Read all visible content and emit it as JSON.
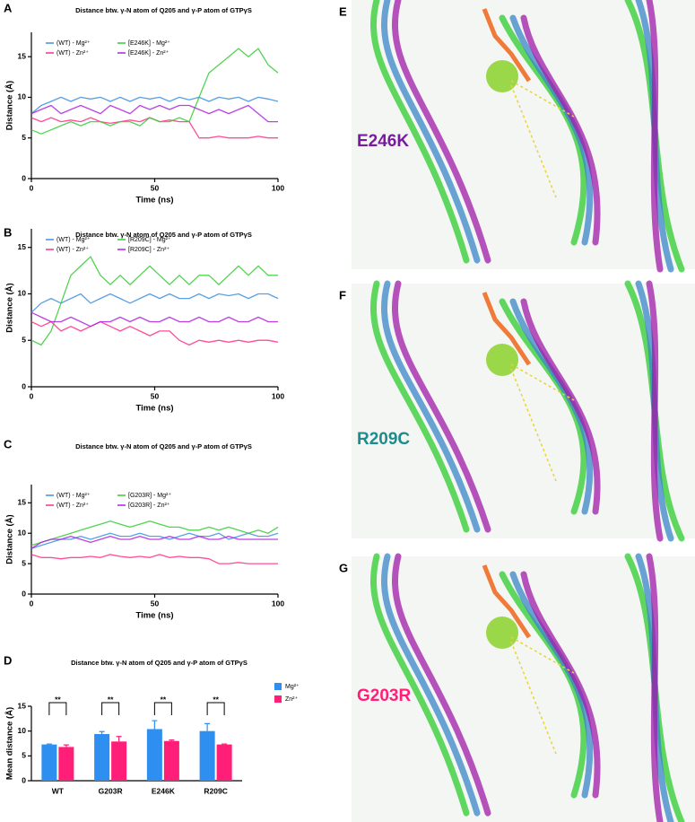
{
  "chart_data": [
    {
      "type": "line",
      "panel": "A",
      "title": "Distance btw. γ-N atom of Q205 and γ-P atom of GTPγS",
      "x_label": "Time (ns)",
      "y_label": "Distance (Å)",
      "xlim": [
        0,
        100
      ],
      "xticks": [
        0,
        50,
        100
      ],
      "ylim": [
        0,
        18
      ],
      "yticks": [
        0,
        5,
        10,
        15
      ],
      "x": [
        0,
        4,
        8,
        12,
        16,
        20,
        24,
        28,
        32,
        36,
        40,
        44,
        48,
        52,
        56,
        60,
        64,
        68,
        72,
        76,
        80,
        84,
        88,
        92,
        96,
        100
      ],
      "series": [
        {
          "name": "(WT) - Mg²⁺",
          "color": "#3d8fe0",
          "values": [
            8,
            9,
            9.5,
            10,
            9.5,
            10,
            9.8,
            10,
            9.5,
            10,
            9.5,
            10,
            9.8,
            10,
            9.5,
            10,
            9.7,
            10,
            9.5,
            10,
            9.8,
            10,
            9.5,
            10,
            9.8,
            9.5
          ]
        },
        {
          "name": "(WT) - Zn²⁺",
          "color": "#ff2d8a",
          "values": [
            7.5,
            7,
            7.5,
            7,
            7.2,
            7,
            7.5,
            7,
            6.8,
            7,
            7.2,
            7,
            7.5,
            7,
            7.2,
            7,
            7,
            5,
            5,
            5.2,
            5,
            5,
            5,
            5.2,
            5,
            5
          ]
        },
        {
          "name": "[E246K] - Mg²⁺",
          "color": "#33cc33",
          "values": [
            6,
            5.5,
            6,
            6.5,
            7,
            6.5,
            7,
            7,
            6.5,
            7,
            7,
            6.5,
            7.5,
            7,
            7,
            7.5,
            7,
            10,
            13,
            14,
            15,
            16,
            15,
            16,
            14,
            13
          ]
        },
        {
          "name": "[E246K] - Zn²⁺",
          "color": "#b020e0",
          "values": [
            8,
            8.5,
            9,
            8,
            8.5,
            9,
            8.5,
            8,
            9,
            8.5,
            8,
            9,
            8.5,
            9,
            8.5,
            9,
            9,
            8.5,
            8,
            8.5,
            8,
            8.5,
            9,
            8,
            7,
            7
          ]
        }
      ]
    },
    {
      "type": "line",
      "panel": "B",
      "title": "Distance btw. γ-N atom of Q205 and γ-P atom of GTPγS",
      "x_label": "Time (ns)",
      "y_label": "Distance (Å)",
      "xlim": [
        0,
        100
      ],
      "xticks": [
        0,
        50,
        100
      ],
      "ylim": [
        0,
        17
      ],
      "yticks": [
        0,
        5,
        10,
        15
      ],
      "x": [
        0,
        4,
        8,
        12,
        16,
        20,
        24,
        28,
        32,
        36,
        40,
        44,
        48,
        52,
        56,
        60,
        64,
        68,
        72,
        76,
        80,
        84,
        88,
        92,
        96,
        100
      ],
      "series": [
        {
          "name": "(WT) - Mg²⁺",
          "color": "#3d8fe0",
          "values": [
            8,
            9,
            9.5,
            9,
            9.5,
            10,
            9,
            9.5,
            10,
            9.5,
            9,
            9.5,
            10,
            9.5,
            10,
            9.5,
            9.5,
            10,
            9.5,
            10,
            9.8,
            10,
            9.5,
            10,
            10,
            9.5
          ]
        },
        {
          "name": "(WT) - Zn²⁺",
          "color": "#ff2d8a",
          "values": [
            7,
            6.5,
            7,
            6,
            6.5,
            6,
            6.5,
            7,
            6.5,
            6,
            6.5,
            6,
            5.5,
            6,
            6,
            5,
            4.5,
            5,
            4.8,
            5,
            4.8,
            5,
            4.8,
            5,
            5,
            4.8
          ]
        },
        {
          "name": "[R209C] - Mg²⁺",
          "color": "#33cc33",
          "values": [
            5,
            4.5,
            6,
            9,
            12,
            13,
            14,
            12,
            11,
            12,
            11,
            12,
            13,
            12,
            11,
            12,
            11,
            12,
            12,
            11,
            12,
            13,
            12,
            13,
            12,
            12
          ]
        },
        {
          "name": "[R209C] - Zn²⁺",
          "color": "#b020e0",
          "values": [
            8,
            7.5,
            7,
            7,
            7.5,
            7,
            6.5,
            7,
            7,
            7.5,
            7,
            7.5,
            7,
            7,
            7.5,
            7,
            7,
            7.5,
            7,
            7,
            7.5,
            7,
            7,
            7.5,
            7,
            7
          ]
        }
      ]
    },
    {
      "type": "line",
      "panel": "C",
      "title": "Distance btw. γ-N atom of Q205 and γ-P atom of GTPγS",
      "x_label": "Time (ns)",
      "y_label": "Distance (Å)",
      "xlim": [
        0,
        100
      ],
      "xticks": [
        0,
        50,
        100
      ],
      "ylim": [
        0,
        18
      ],
      "yticks": [
        0,
        5,
        10,
        15
      ],
      "x": [
        0,
        4,
        8,
        12,
        16,
        20,
        24,
        28,
        32,
        36,
        40,
        44,
        48,
        52,
        56,
        60,
        64,
        68,
        72,
        76,
        80,
        84,
        88,
        92,
        96,
        100
      ],
      "series": [
        {
          "name": "(WT) - Mg²⁺",
          "color": "#3d8fe0",
          "values": [
            7.5,
            8,
            8.5,
            9,
            9,
            9.5,
            9,
            9.5,
            10,
            9.5,
            9.5,
            10,
            9.5,
            9.5,
            9,
            9.5,
            10,
            9.5,
            9.5,
            10,
            9,
            9.5,
            10,
            9.5,
            9.5,
            10
          ]
        },
        {
          "name": "(WT) - Zn²⁺",
          "color": "#ff2d8a",
          "values": [
            6.5,
            6,
            6,
            5.8,
            6,
            6,
            6.2,
            6,
            6.5,
            6.2,
            6,
            6.2,
            6,
            6.5,
            6,
            6.2,
            6,
            6,
            5.8,
            5,
            5,
            5.2,
            5,
            5,
            5,
            5
          ]
        },
        {
          "name": "[G203R] - Mg²⁺",
          "color": "#33cc33",
          "values": [
            8,
            8.5,
            9,
            9.5,
            10,
            10.5,
            11,
            11.5,
            12,
            11.5,
            11,
            11.5,
            12,
            11.5,
            11,
            11,
            10.5,
            10.5,
            11,
            10.5,
            11,
            10.5,
            10,
            10.5,
            10,
            11
          ]
        },
        {
          "name": "[G203R] - Zn²⁺",
          "color": "#b020e0",
          "values": [
            7.5,
            8.5,
            9,
            9,
            9.5,
            9,
            8.5,
            9,
            9.5,
            9,
            9,
            9.5,
            9,
            9,
            9.5,
            9,
            9,
            9.5,
            9,
            9,
            9.5,
            9,
            9,
            9,
            9,
            9
          ]
        }
      ]
    },
    {
      "type": "bar",
      "panel": "D",
      "title": "Distance btw. γ-N atom of Q205 and γ-P atom of GTPγS",
      "y_label": "Mean distance (Å)",
      "ylim": [
        0,
        15
      ],
      "yticks": [
        0,
        5,
        10,
        15
      ],
      "categories": [
        "WT",
        "G203R",
        "E246K",
        "R209C"
      ],
      "series": [
        {
          "name": "Mg²⁺",
          "color": "#2e8ff0",
          "values": [
            7.3,
            9.4,
            10.4,
            10.0
          ],
          "errors": [
            0.1,
            0.5,
            1.7,
            1.5
          ]
        },
        {
          "name": "Zn²⁺",
          "color": "#ff1f78",
          "values": [
            6.8,
            7.9,
            8.0,
            7.3
          ],
          "errors": [
            0.4,
            1.0,
            0.2,
            0.1
          ]
        }
      ],
      "annotations": [
        "**",
        "**",
        "**",
        "**"
      ]
    }
  ],
  "structures": [
    {
      "panel": "E",
      "label": "E246K",
      "color": "#7a1aa0"
    },
    {
      "panel": "F",
      "label": "R209C",
      "color": "#1e8c8c"
    },
    {
      "panel": "G",
      "label": "G203R",
      "color": "#ff1f78"
    }
  ]
}
